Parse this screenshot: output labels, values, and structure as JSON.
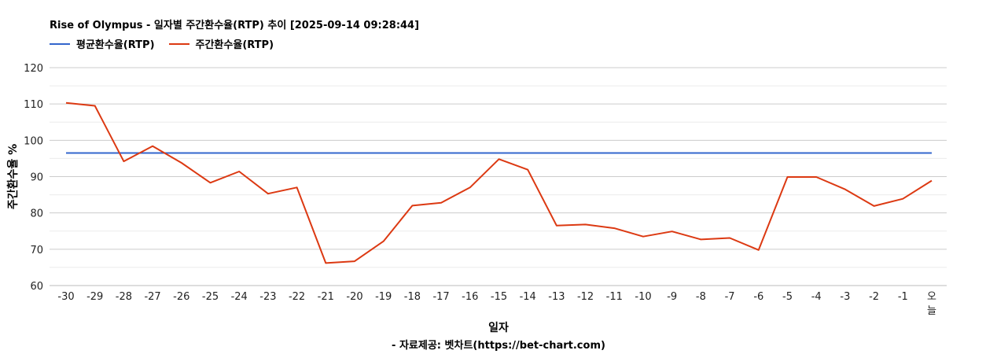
{
  "title": "Rise of Olympus - 일자별 주간환수율(RTP) 추이 [2025-09-14 09:28:44]",
  "source": "- 자료제공: 벳차트(https://bet-chart.com)",
  "chart_data": {
    "type": "line",
    "xlabel": "일자",
    "ylabel": "주간환수율 %",
    "ylim": [
      60,
      120
    ],
    "yticks": [
      60,
      70,
      80,
      90,
      100,
      110,
      120
    ],
    "grid": true,
    "legend_position": "top-left",
    "categories": [
      "-30",
      "-29",
      "-28",
      "-27",
      "-26",
      "-25",
      "-24",
      "-23",
      "-22",
      "-21",
      "-20",
      "-19",
      "-18",
      "-17",
      "-16",
      "-15",
      "-14",
      "-13",
      "-12",
      "-11",
      "-10",
      "-9",
      "-8",
      "-7",
      "-6",
      "-5",
      "-4",
      "-3",
      "-2",
      "-1",
      "오늘"
    ],
    "series": [
      {
        "name": "평균환수율(RTP)",
        "color": "#3366cc",
        "values": [
          96.5,
          96.5,
          96.5,
          96.5,
          96.5,
          96.5,
          96.5,
          96.5,
          96.5,
          96.5,
          96.5,
          96.5,
          96.5,
          96.5,
          96.5,
          96.5,
          96.5,
          96.5,
          96.5,
          96.5,
          96.5,
          96.5,
          96.5,
          96.5,
          96.5,
          96.5,
          96.5,
          96.5,
          96.5,
          96.5,
          96.5
        ]
      },
      {
        "name": "주간환수율(RTP)",
        "color": "#dc3912",
        "values": [
          110.3,
          109.5,
          94.2,
          98.4,
          93.8,
          88.3,
          91.4,
          85.3,
          87.0,
          66.2,
          66.7,
          72.2,
          82.0,
          82.8,
          87.0,
          94.8,
          91.9,
          76.5,
          76.8,
          75.8,
          73.5,
          74.9,
          72.7,
          73.1,
          69.8,
          89.9,
          89.9,
          86.5,
          81.9,
          83.9,
          88.9
        ]
      }
    ]
  }
}
